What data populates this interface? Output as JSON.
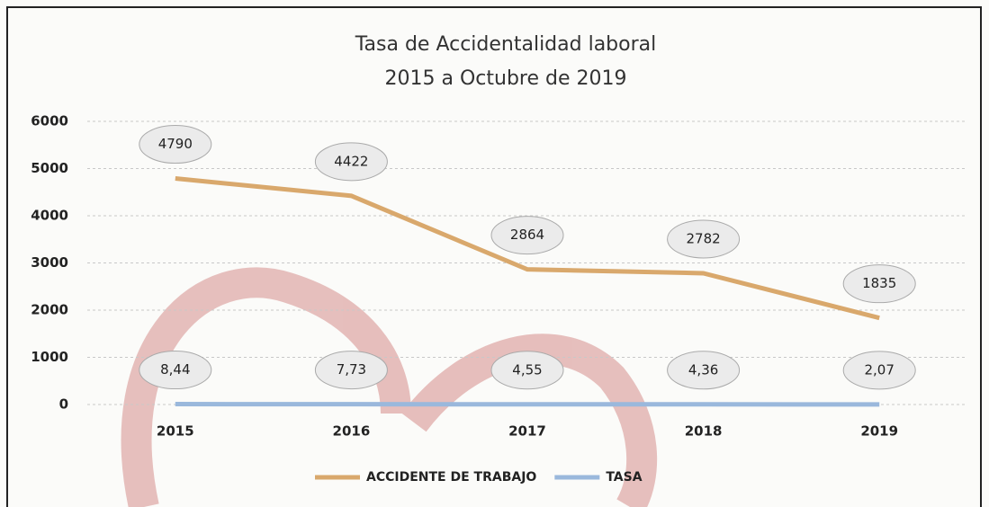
{
  "chart_data": {
    "type": "line",
    "title": "Tasa de Accidentalidad laboral",
    "subtitle": "2015 a Octubre de 2019",
    "categories": [
      "2015",
      "2016",
      "2017",
      "2018",
      "2019"
    ],
    "series": [
      {
        "name": "ACCIDENTE DE TRABAJO",
        "color": "#d9a86c",
        "values": [
          4790,
          4422,
          2864,
          2782,
          1835
        ]
      },
      {
        "name": "TASA",
        "color": "#9ab8dc",
        "values": [
          8.44,
          7.73,
          4.55,
          4.36,
          2.07
        ],
        "value_labels": [
          "8,44",
          "7,73",
          "4,55",
          "4,36",
          "2,07"
        ]
      }
    ],
    "ylim": [
      0,
      6000
    ],
    "yticks": [
      0,
      1000,
      2000,
      3000,
      4000,
      5000,
      6000
    ],
    "grid": true,
    "legend": "bottom"
  }
}
